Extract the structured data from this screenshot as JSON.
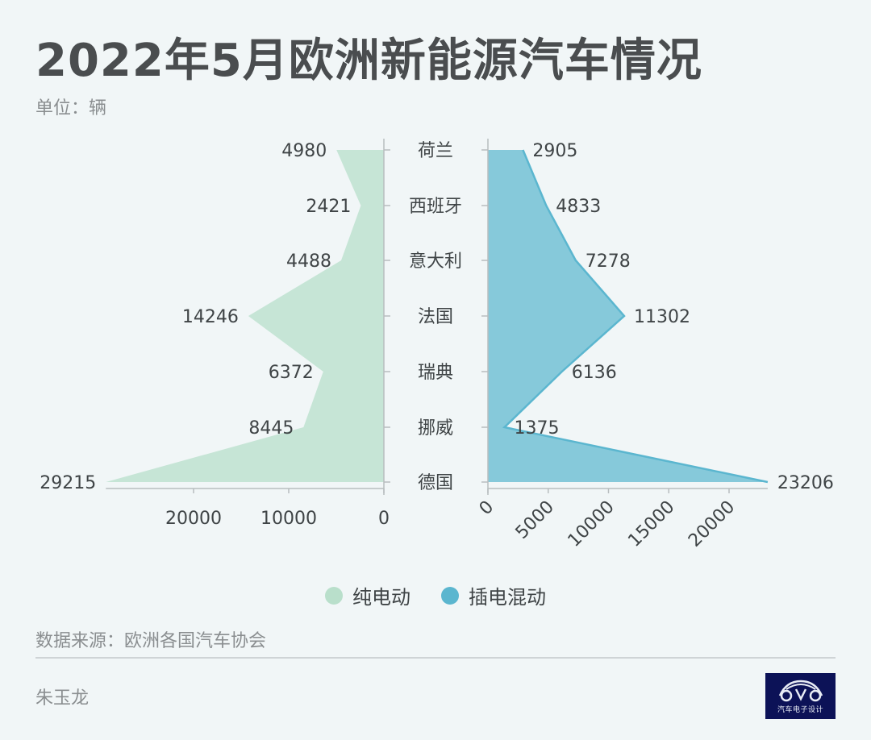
{
  "header": {
    "title": "2022年5月欧洲新能源汽车情况",
    "unit": "单位：辆"
  },
  "legend": [
    {
      "label": "纯电动",
      "color": "#b9dfcb"
    },
    {
      "label": "插电混动",
      "color": "#5bb6cf"
    }
  ],
  "footer": {
    "source": "数据来源：欧洲各国汽车协会",
    "author": "朱玉龙",
    "logo_text": "汽车电子设计"
  },
  "colors": {
    "bev_fill": "#c6e5d6",
    "bev_line": "#c6e5d6",
    "phev_fill": "#86c9da",
    "phev_line": "#5bb6cf",
    "axis": "#b8bdbf",
    "text": "#3f4446"
  },
  "chart_data": {
    "type": "area",
    "subtype": "butterfly (mirrored horizontal area chart)",
    "title": "2022年5月欧洲新能源汽车情况",
    "unit": "辆",
    "categories": [
      "荷兰",
      "西班牙",
      "意大利",
      "法国",
      "瑞典",
      "挪威",
      "德国"
    ],
    "series": [
      {
        "name": "纯电动",
        "side": "left",
        "values": [
          4980,
          2421,
          4488,
          14246,
          6372,
          8445,
          29215
        ]
      },
      {
        "name": "插电混动",
        "side": "right",
        "values": [
          2905,
          4833,
          7278,
          11302,
          6136,
          1375,
          23206
        ]
      }
    ],
    "left_axis": {
      "ticks": [
        20000,
        10000,
        0
      ],
      "reversed": true
    },
    "right_axis": {
      "ticks": [
        0,
        5000,
        10000,
        15000,
        20000
      ],
      "tick_label_rotation": -45
    },
    "grid": false,
    "legend_position": "bottom-center",
    "source": "欧洲各国汽车协会"
  }
}
